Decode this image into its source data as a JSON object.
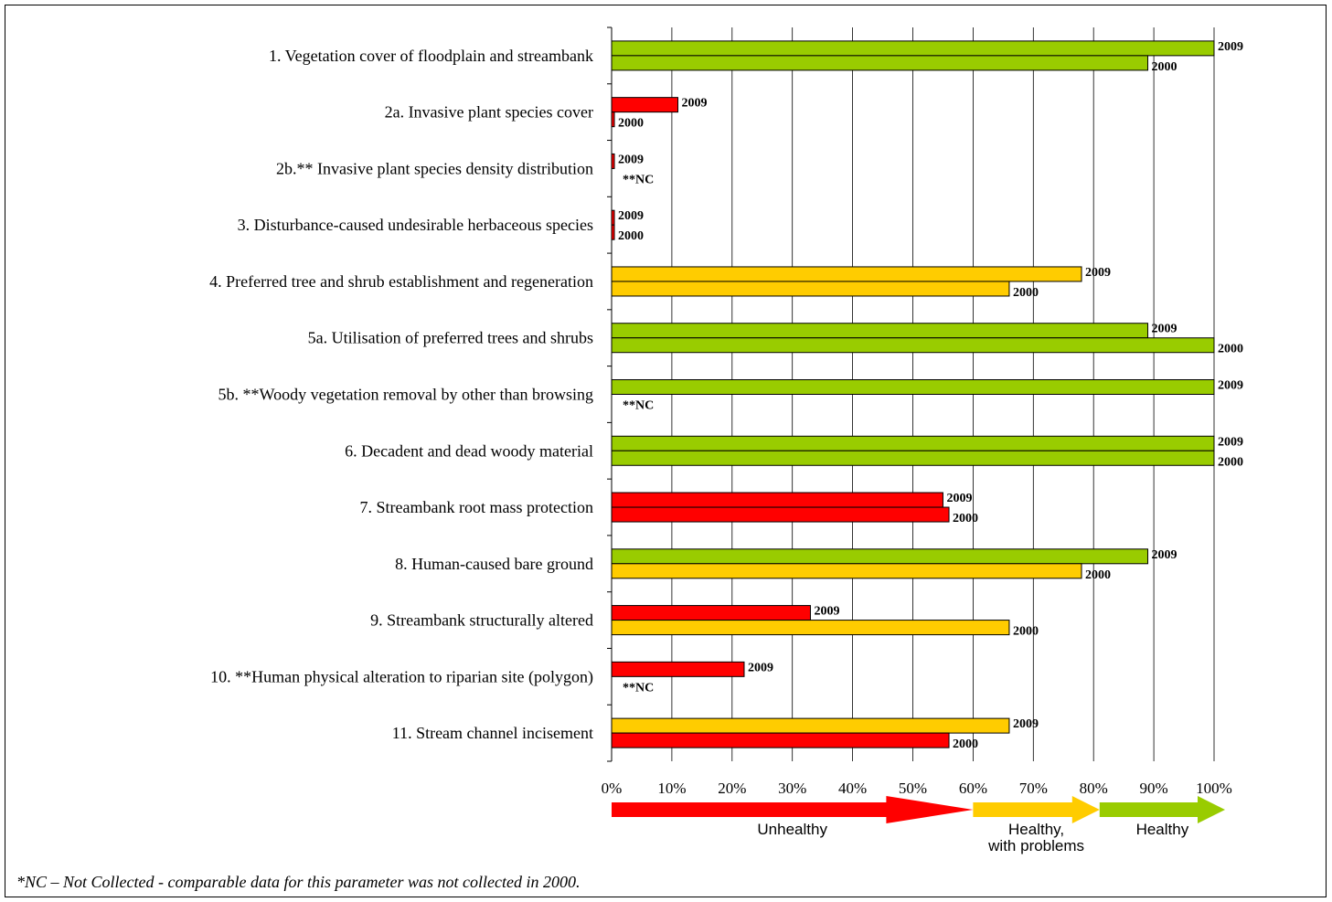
{
  "chart_data": {
    "type": "bar",
    "orientation": "horizontal",
    "xlim": [
      0,
      100
    ],
    "x_ticks": [
      "0%",
      "10%",
      "20%",
      "30%",
      "40%",
      "50%",
      "60%",
      "70%",
      "80%",
      "90%",
      "100%"
    ],
    "grid": "vertical",
    "colors": {
      "red": "#ff0000",
      "yellow": "#ffcc00",
      "green": "#99cc00"
    },
    "rows": [
      {
        "label": "1.  Vegetation cover of floodplain and streambank",
        "bars": [
          {
            "year": "2009",
            "value": 100,
            "color": "green"
          },
          {
            "year": "2000",
            "value": 89,
            "color": "green"
          }
        ]
      },
      {
        "label": "2a. Invasive plant species cover",
        "bars": [
          {
            "year": "2009",
            "value": 11,
            "color": "red"
          },
          {
            "year": "2000",
            "value": 0.4,
            "color": "red"
          }
        ]
      },
      {
        "label": "2b.** Invasive plant species density distribution",
        "bars": [
          {
            "year": "2009",
            "value": 0.4,
            "color": "red"
          },
          {
            "year": "**NC",
            "value": 0,
            "color": "none"
          }
        ]
      },
      {
        "label": "3.  Disturbance-caused undesirable herbaceous species",
        "bars": [
          {
            "year": "2009",
            "value": 0.4,
            "color": "red"
          },
          {
            "year": "2000",
            "value": 0.4,
            "color": "red"
          }
        ]
      },
      {
        "label": "4.  Preferred tree and shrub establishment and regeneration",
        "bars": [
          {
            "year": "2009",
            "value": 78,
            "color": "yellow"
          },
          {
            "year": "2000",
            "value": 66,
            "color": "yellow"
          }
        ]
      },
      {
        "label": "5a.  Utilisation of preferred trees and shrubs",
        "bars": [
          {
            "year": "2009",
            "value": 89,
            "color": "green"
          },
          {
            "year": "2000",
            "value": 100,
            "color": "green"
          }
        ]
      },
      {
        "label": "5b.  **Woody vegetation removal by other than browsing",
        "bars": [
          {
            "year": "2009",
            "value": 100,
            "color": "green"
          },
          {
            "year": "**NC",
            "value": 0,
            "color": "none"
          }
        ]
      },
      {
        "label": "6.  Decadent and dead woody material",
        "bars": [
          {
            "year": "2009",
            "value": 100,
            "color": "green"
          },
          {
            "year": "2000",
            "value": 100,
            "color": "green"
          }
        ]
      },
      {
        "label": "7.  Streambank root mass protection",
        "bars": [
          {
            "year": "2009",
            "value": 55,
            "color": "red"
          },
          {
            "year": "2000",
            "value": 56,
            "color": "red"
          }
        ]
      },
      {
        "label": "8.  Human-caused bare ground",
        "bars": [
          {
            "year": "2009",
            "value": 89,
            "color": "green"
          },
          {
            "year": "2000",
            "value": 78,
            "color": "yellow"
          }
        ]
      },
      {
        "label": "9.  Streambank structurally altered",
        "bars": [
          {
            "year": "2009",
            "value": 33,
            "color": "red"
          },
          {
            "year": "2000",
            "value": 66,
            "color": "yellow"
          }
        ]
      },
      {
        "label": "10. **Human physical alteration to riparian site (polygon)",
        "bars": [
          {
            "year": "2009",
            "value": 22,
            "color": "red"
          },
          {
            "year": "**NC",
            "value": 0,
            "color": "none"
          }
        ]
      },
      {
        "label": "11. Stream channel incisement",
        "bars": [
          {
            "year": "2009",
            "value": 66,
            "color": "yellow"
          },
          {
            "year": "2000",
            "value": 56,
            "color": "red"
          }
        ]
      }
    ],
    "zones": [
      {
        "label": "Unhealthy",
        "from": 0,
        "to": 60,
        "color": "red"
      },
      {
        "label": "Healthy, with problems",
        "from": 60,
        "to": 81,
        "color": "yellow"
      },
      {
        "label": "Healthy",
        "from": 81,
        "to": 100,
        "color": "green"
      }
    ]
  },
  "footnote": "*NC – Not Collected - comparable data for this parameter was not collected in 2000."
}
